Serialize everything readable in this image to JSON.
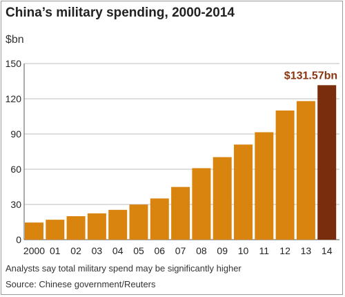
{
  "chart_data": {
    "type": "bar",
    "title": "China’s military spending, 2000-2014",
    "unit_label": "$bn",
    "xlabel": "",
    "ylabel": "",
    "categories": [
      "2000",
      "01",
      "02",
      "03",
      "04",
      "05",
      "06",
      "07",
      "08",
      "09",
      "10",
      "11",
      "12",
      "13",
      "14"
    ],
    "values": [
      14.6,
      17.0,
      20.0,
      22.4,
      25.4,
      29.9,
      35.1,
      44.9,
      60.9,
      70.3,
      81.0,
      91.5,
      110.0,
      118.0,
      131.57
    ],
    "ylim": [
      0,
      150
    ],
    "yticks": [
      "0",
      "30",
      "60",
      "90",
      "120",
      "150"
    ],
    "grid": true,
    "highlight_index": 14,
    "callout": "$131.57bn",
    "note": "Analysts say total military spend may be significantly higher",
    "source": "Source: Chinese government/Reuters",
    "colors": {
      "bar": "#d9840f",
      "highlight": "#7a2d0c",
      "callout": "#8a3410",
      "grid": "#bdbdbd",
      "plot_bg": "#ffffff"
    }
  }
}
